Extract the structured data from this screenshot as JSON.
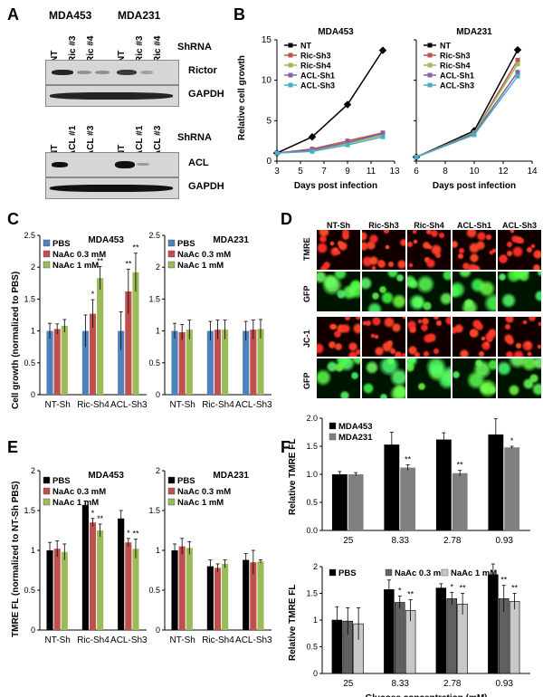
{
  "panels": {
    "A": "A",
    "B": "B",
    "C": "C",
    "D": "D",
    "E": "E",
    "F": "F"
  },
  "panelA": {
    "cells_top": [
      "MDA453",
      "MDA231"
    ],
    "lanes_top": [
      "NT",
      "Ric #3",
      "Ric #4",
      "NT",
      "Ric #3",
      "Ric #4"
    ],
    "shrna": "ShRNA",
    "rictor": "Rictor",
    "gapdh": "GAPDH",
    "lanes_bottom": [
      "NT",
      "ACL #1",
      "ACL #3",
      "NT",
      "ACL #1",
      "ACL #3"
    ],
    "acl": "ACL"
  },
  "panelB": {
    "ylabel": "Relative cell growth",
    "xlabel": "Days post infection",
    "charts": [
      {
        "title": "MDA453",
        "ylim": [
          0,
          15
        ],
        "yticks": [
          0,
          5,
          10,
          15
        ],
        "xlim": [
          3,
          13
        ],
        "xticks": [
          3,
          5,
          7,
          9,
          11,
          13
        ]
      },
      {
        "title": "MDA231",
        "ylim": [
          0,
          30
        ],
        "yticks": [],
        "xlim": [
          6,
          14
        ],
        "xticks": [
          6,
          8,
          10,
          12,
          14
        ]
      }
    ]
  },
  "panelC": {
    "ylabel": "Cell growth (normalized to PBS)",
    "charts": [
      {
        "title": "MDA453"
      },
      {
        "title": "MDA231"
      }
    ]
  },
  "panelD": {
    "cols": [
      "NT-Sh",
      "Ric-Sh3",
      "Ric-Sh4",
      "ACL-Sh1",
      "ACL-Sh3"
    ],
    "rows": [
      "TMRE",
      "GFP",
      "JC-1",
      "GFP"
    ]
  },
  "panelE": {
    "ylabel": "TMRE FL (normalized to NT-Sh PBS)",
    "charts": [
      {
        "title": "MDA453"
      },
      {
        "title": "MDA231"
      }
    ]
  },
  "panelF": {
    "ylabel": "Relative TMRE FL",
    "xlabel": "Glucose concentration (mM)"
  },
  "chart_data": [
    {
      "id": "B-left",
      "type": "line",
      "title": "MDA453",
      "xlabel": "Days post infection",
      "ylabel": "Relative cell growth",
      "xlim": [
        3,
        13
      ],
      "ylim": [
        0,
        15
      ],
      "series": [
        {
          "name": "NT",
          "color": "#000000",
          "x": [
            3,
            6,
            9,
            12
          ],
          "values": [
            1,
            3,
            7,
            13.7
          ]
        },
        {
          "name": "Ric-Sh3",
          "color": "#c0504d",
          "x": [
            3,
            6,
            9,
            12
          ],
          "values": [
            1,
            1.5,
            2.5,
            3.5
          ]
        },
        {
          "name": "Ric-Sh4",
          "color": "#9bbb59",
          "x": [
            3,
            6,
            9,
            12
          ],
          "values": [
            1,
            1.3,
            2.2,
            3.2
          ]
        },
        {
          "name": "ACL-Sh1",
          "color": "#8064a2",
          "x": [
            3,
            6,
            9,
            12
          ],
          "values": [
            1,
            1.4,
            2.3,
            3.4
          ]
        },
        {
          "name": "ACL-Sh3",
          "color": "#4bacc6",
          "x": [
            3,
            6,
            9,
            12
          ],
          "values": [
            1,
            1.2,
            2,
            3
          ]
        }
      ]
    },
    {
      "id": "B-right",
      "type": "line",
      "title": "MDA231",
      "xlabel": "Days post infection",
      "xlim": [
        6,
        14
      ],
      "ylim": [
        0,
        30
      ],
      "series": [
        {
          "name": "NT",
          "color": "#000000",
          "x": [
            6,
            10,
            13
          ],
          "values": [
            1,
            7.5,
            27.5
          ]
        },
        {
          "name": "Ric-Sh3",
          "color": "#c0504d",
          "x": [
            6,
            10,
            13
          ],
          "values": [
            1,
            7,
            25
          ]
        },
        {
          "name": "Ric-Sh4",
          "color": "#9bbb59",
          "x": [
            6,
            10,
            13
          ],
          "values": [
            1,
            7,
            24
          ]
        },
        {
          "name": "ACL-Sh1",
          "color": "#8064a2",
          "x": [
            6,
            10,
            13
          ],
          "values": [
            1,
            6.8,
            22
          ]
        },
        {
          "name": "ACL-Sh3",
          "color": "#4bacc6",
          "x": [
            6,
            10,
            13
          ],
          "values": [
            1,
            6.5,
            21
          ]
        }
      ]
    },
    {
      "id": "C-left",
      "type": "bar",
      "title": "MDA453",
      "ylabel": "Cell growth (normalized to PBS)",
      "ylim": [
        0,
        2.5
      ],
      "yticks": [
        "0",
        "0.5",
        "1",
        "1.5",
        "2",
        "2.5"
      ],
      "categories": [
        "NT-Sh",
        "Ric-Sh4",
        "ACL-Sh3"
      ],
      "series": [
        {
          "name": "PBS",
          "color": "#4f81bd",
          "values": [
            1,
            1,
            1
          ],
          "err": [
            0.12,
            0.25,
            0.3
          ]
        },
        {
          "name": "NaAc 0.3 mM",
          "color": "#c0504d",
          "values": [
            1.03,
            1.27,
            1.62
          ],
          "err": [
            0.08,
            0.22,
            0.35
          ]
        },
        {
          "name": "NaAc 1 mM",
          "color": "#9bbb59",
          "values": [
            1.08,
            1.83,
            1.92
          ],
          "err": [
            0.1,
            0.18,
            0.3
          ]
        }
      ],
      "annotations": [
        [
          "",
          "",
          ""
        ],
        [
          "",
          "*",
          "**"
        ],
        [
          "",
          "**",
          "**"
        ]
      ]
    },
    {
      "id": "C-right",
      "type": "bar",
      "title": "MDA231",
      "ylim": [
        0,
        2.5
      ],
      "yticks": [
        "0",
        "0.5",
        "1",
        "1.5",
        "2",
        "2.5"
      ],
      "categories": [
        "NT-Sh",
        "Ric-Sh4",
        "ACL-Sh3"
      ],
      "series": [
        {
          "name": "PBS",
          "color": "#4f81bd",
          "values": [
            1,
            1,
            1
          ],
          "err": [
            0.12,
            0.15,
            0.15
          ]
        },
        {
          "name": "NaAc 0.3 mM",
          "color": "#c0504d",
          "values": [
            0.98,
            1.02,
            1.02
          ],
          "err": [
            0.12,
            0.15,
            0.15
          ]
        },
        {
          "name": "NaAc 1 mM",
          "color": "#9bbb59",
          "values": [
            1.02,
            1.02,
            1.03
          ],
          "err": [
            0.15,
            0.15,
            0.15
          ]
        }
      ],
      "annotations": [
        [
          "",
          "",
          ""
        ],
        [
          "",
          "",
          ""
        ],
        [
          "",
          "",
          ""
        ]
      ]
    },
    {
      "id": "E-left",
      "type": "bar",
      "title": "MDA453",
      "ylabel": "TMRE FL (normalized to NT-Sh PBS)",
      "ylim": [
        0,
        2
      ],
      "yticks": [
        "0",
        "0.5",
        "1",
        "1.5",
        "2"
      ],
      "categories": [
        "NT-Sh",
        "Ric-Sh4",
        "ACL-Sh3"
      ],
      "series": [
        {
          "name": "PBS",
          "color": "#000000",
          "values": [
            1,
            1.57,
            1.4
          ],
          "err": [
            0.1,
            0.05,
            0.1
          ]
        },
        {
          "name": "NaAc 0.3 mM",
          "color": "#c0504d",
          "values": [
            1.02,
            1.35,
            1.1
          ],
          "err": [
            0.1,
            0.05,
            0.05
          ]
        },
        {
          "name": "NaAc 1 mM",
          "color": "#9bbb59",
          "values": [
            0.98,
            1.25,
            1.02
          ],
          "err": [
            0.1,
            0.08,
            0.12
          ]
        }
      ],
      "annotations": [
        [
          "",
          "",
          ""
        ],
        [
          "",
          "*",
          "*"
        ],
        [
          "",
          "**",
          "**"
        ]
      ]
    },
    {
      "id": "E-right",
      "type": "bar",
      "title": "MDA231",
      "ylim": [
        0,
        2
      ],
      "yticks": [
        "0",
        "0.5",
        "1",
        "1.5",
        "2"
      ],
      "categories": [
        "NT-Sh",
        "Ric-Sh4",
        "ACL-Sh3"
      ],
      "series": [
        {
          "name": "PBS",
          "color": "#000000",
          "values": [
            1,
            0.8,
            0.88
          ],
          "err": [
            0.08,
            0.08,
            0.08
          ]
        },
        {
          "name": "NaAc 0.3 mM",
          "color": "#c0504d",
          "values": [
            1.05,
            0.78,
            0.85
          ],
          "err": [
            0.1,
            0.05,
            0.15
          ]
        },
        {
          "name": "NaAc 1 mM",
          "color": "#9bbb59",
          "values": [
            1.03,
            0.83,
            0.86
          ],
          "err": [
            0.08,
            0.05,
            0.02
          ]
        }
      ],
      "annotations": [
        [
          "",
          "",
          ""
        ],
        [
          "",
          "",
          ""
        ],
        [
          "",
          "",
          ""
        ]
      ]
    },
    {
      "id": "F-top",
      "type": "bar",
      "ylabel": "Relative TMRE FL",
      "ylim": [
        0,
        2
      ],
      "yticks": [
        "0.0",
        "0.5",
        "1.0",
        "1.5",
        "2.0"
      ],
      "categories": [
        "25",
        "8.33",
        "2.78",
        "0.93"
      ],
      "series": [
        {
          "name": "MDA453",
          "color": "#000000",
          "values": [
            1,
            1.53,
            1.62,
            1.71
          ],
          "err": [
            0.05,
            0.22,
            0.12,
            0.28
          ]
        },
        {
          "name": "MDA231",
          "color": "#808080",
          "values": [
            1,
            1.12,
            1.02,
            1.48
          ],
          "err": [
            0.03,
            0.05,
            0.05,
            0.02
          ]
        }
      ],
      "annotations": [
        [
          "",
          "",
          "",
          ""
        ],
        [
          "",
          "**",
          "**",
          "*"
        ]
      ]
    },
    {
      "id": "F-bottom",
      "type": "bar",
      "xlabel": "Glucose concentration (mM)",
      "ylabel": "Relative TMRE FL",
      "ylim": [
        0,
        2
      ],
      "yticks": [
        "0",
        "0.5",
        "1",
        "1.5",
        "2"
      ],
      "categories": [
        "25",
        "8.33",
        "2.78",
        "0.93"
      ],
      "series": [
        {
          "name": "PBS",
          "color": "#000000",
          "values": [
            1,
            1.57,
            1.6,
            1.85
          ],
          "err": [
            0.25,
            0.18,
            0.08,
            0.2
          ]
        },
        {
          "name": "NaAc 0.3 mM",
          "color": "#606060",
          "values": [
            0.98,
            1.33,
            1.4,
            1.4
          ],
          "err": [
            0.25,
            0.12,
            0.12,
            0.25
          ]
        },
        {
          "name": "NaAc 1 mM",
          "color": "#c8c8c8",
          "values": [
            0.93,
            1.18,
            1.3,
            1.35
          ],
          "err": [
            0.3,
            0.2,
            0.2,
            0.15
          ]
        }
      ],
      "annotations": [
        [
          "",
          "",
          "",
          ""
        ],
        [
          "",
          "*",
          "*",
          "**"
        ],
        [
          "",
          "**",
          "**",
          "**"
        ]
      ]
    }
  ]
}
